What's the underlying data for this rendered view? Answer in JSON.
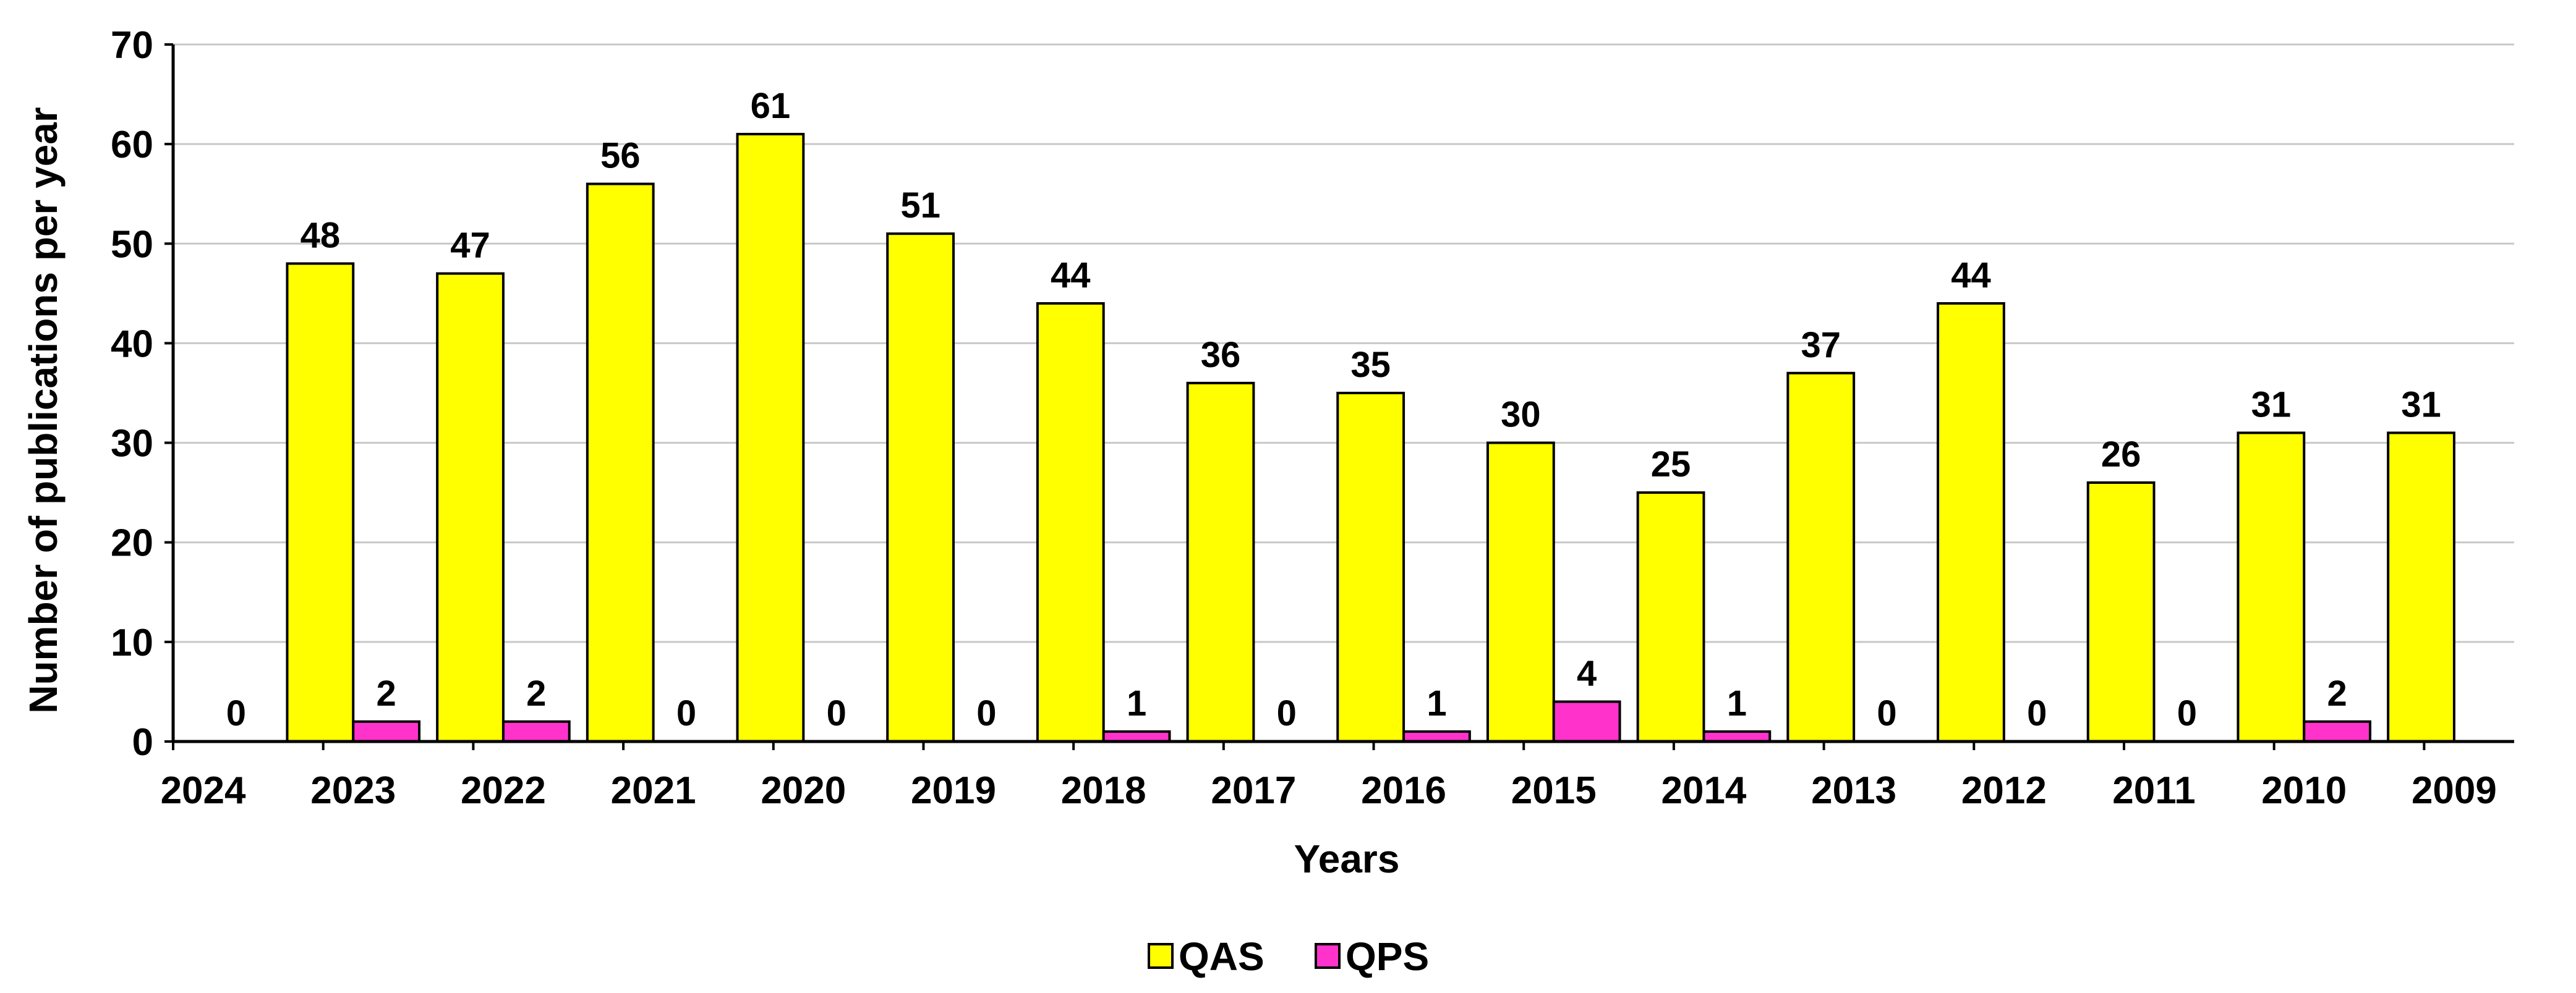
{
  "chart_data": {
    "type": "bar",
    "title": "",
    "xlabel": "Years",
    "ylabel": "Number of publications per year",
    "ylim": [
      0,
      70
    ],
    "yticks": [
      0,
      10,
      20,
      30,
      40,
      50,
      60,
      70
    ],
    "grid": true,
    "legend_position": "bottom-center",
    "categories": [
      "2024",
      "2023",
      "2022",
      "2021",
      "2020",
      "2019",
      "2018",
      "2017",
      "2016",
      "2015",
      "2014",
      "2013",
      "2012",
      "2011",
      "2010",
      "2009"
    ],
    "series": [
      {
        "name": "QAS",
        "color": "#ffff00",
        "values": [
          0,
          48,
          47,
          56,
          61,
          51,
          44,
          36,
          35,
          30,
          25,
          37,
          44,
          26,
          31,
          31
        ],
        "labels": [
          null,
          "48",
          "47",
          "56",
          "61",
          "51",
          "44",
          "36",
          "35",
          "30",
          "25",
          "37",
          "44",
          "26",
          "31",
          "31"
        ]
      },
      {
        "name": "QPS",
        "color": "#ff33cc",
        "values": [
          0,
          2,
          2,
          0,
          0,
          0,
          1,
          0,
          1,
          4,
          1,
          0,
          0,
          0,
          2,
          0
        ],
        "labels": [
          "0",
          "2",
          "2",
          "0",
          "0",
          "0",
          "1",
          "0",
          "1",
          "4",
          "1",
          "0",
          "0",
          "0",
          "2",
          null
        ]
      }
    ]
  }
}
